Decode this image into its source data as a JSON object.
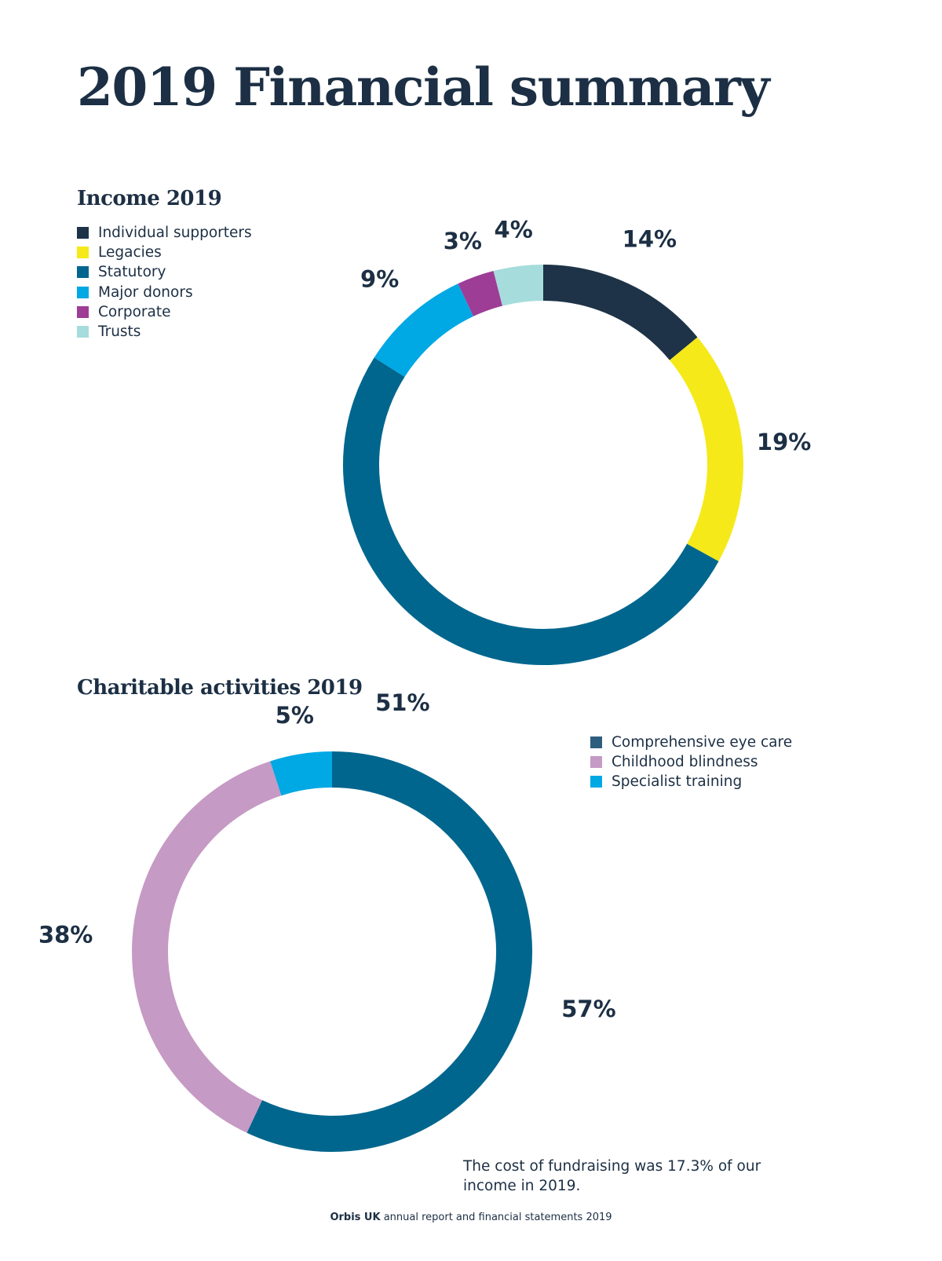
{
  "page": {
    "title": "2019 Financial summary",
    "note": "The cost of fundraising was 17.3% of our income in 2019.",
    "footer_brand": "Orbis UK",
    "footer_text": " annual report and financial statements 2019"
  },
  "chart_data": [
    {
      "type": "pie",
      "variant": "donut",
      "title": "Income 2019",
      "legend_position": "top-left",
      "categories": [
        "Individual supporters",
        "Legacies",
        "Statutory",
        "Major donors",
        "Corporate",
        "Trusts"
      ],
      "values": [
        14,
        19,
        51,
        9,
        3,
        4
      ],
      "labels": [
        "14%",
        "19%",
        "51%",
        "9%",
        "3%",
        "4%"
      ],
      "colors": [
        "#1e3347",
        "#f5e919",
        "#00668e",
        "#00a8e4",
        "#9d3d96",
        "#a6dcdc"
      ],
      "unit": "%"
    },
    {
      "type": "pie",
      "variant": "donut",
      "title": "Charitable activities 2019",
      "legend_position": "top-right",
      "categories": [
        "Comprehensive eye care",
        "Childhood blindness",
        "Specialist training"
      ],
      "values": [
        57,
        38,
        5
      ],
      "labels": [
        "57%",
        "38%",
        "5%"
      ],
      "colors": [
        "#00668e",
        "#c59ac4",
        "#00a8e4"
      ],
      "legend_colors": [
        "#2e5e7e",
        "#c59ac4",
        "#00a8e4"
      ],
      "unit": "%"
    }
  ]
}
